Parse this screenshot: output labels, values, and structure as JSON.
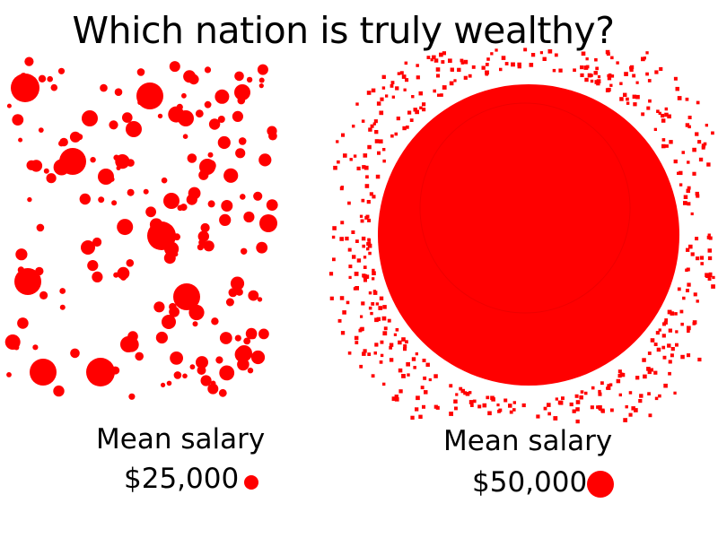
{
  "title": "Which nation is truly wealthy?",
  "accent_color": "#ff0000",
  "nations": [
    {
      "caption_label": "Mean salary",
      "caption_value": "$25,000"
    },
    {
      "caption_label": "Mean salary",
      "caption_value": "$50,000"
    }
  ]
}
